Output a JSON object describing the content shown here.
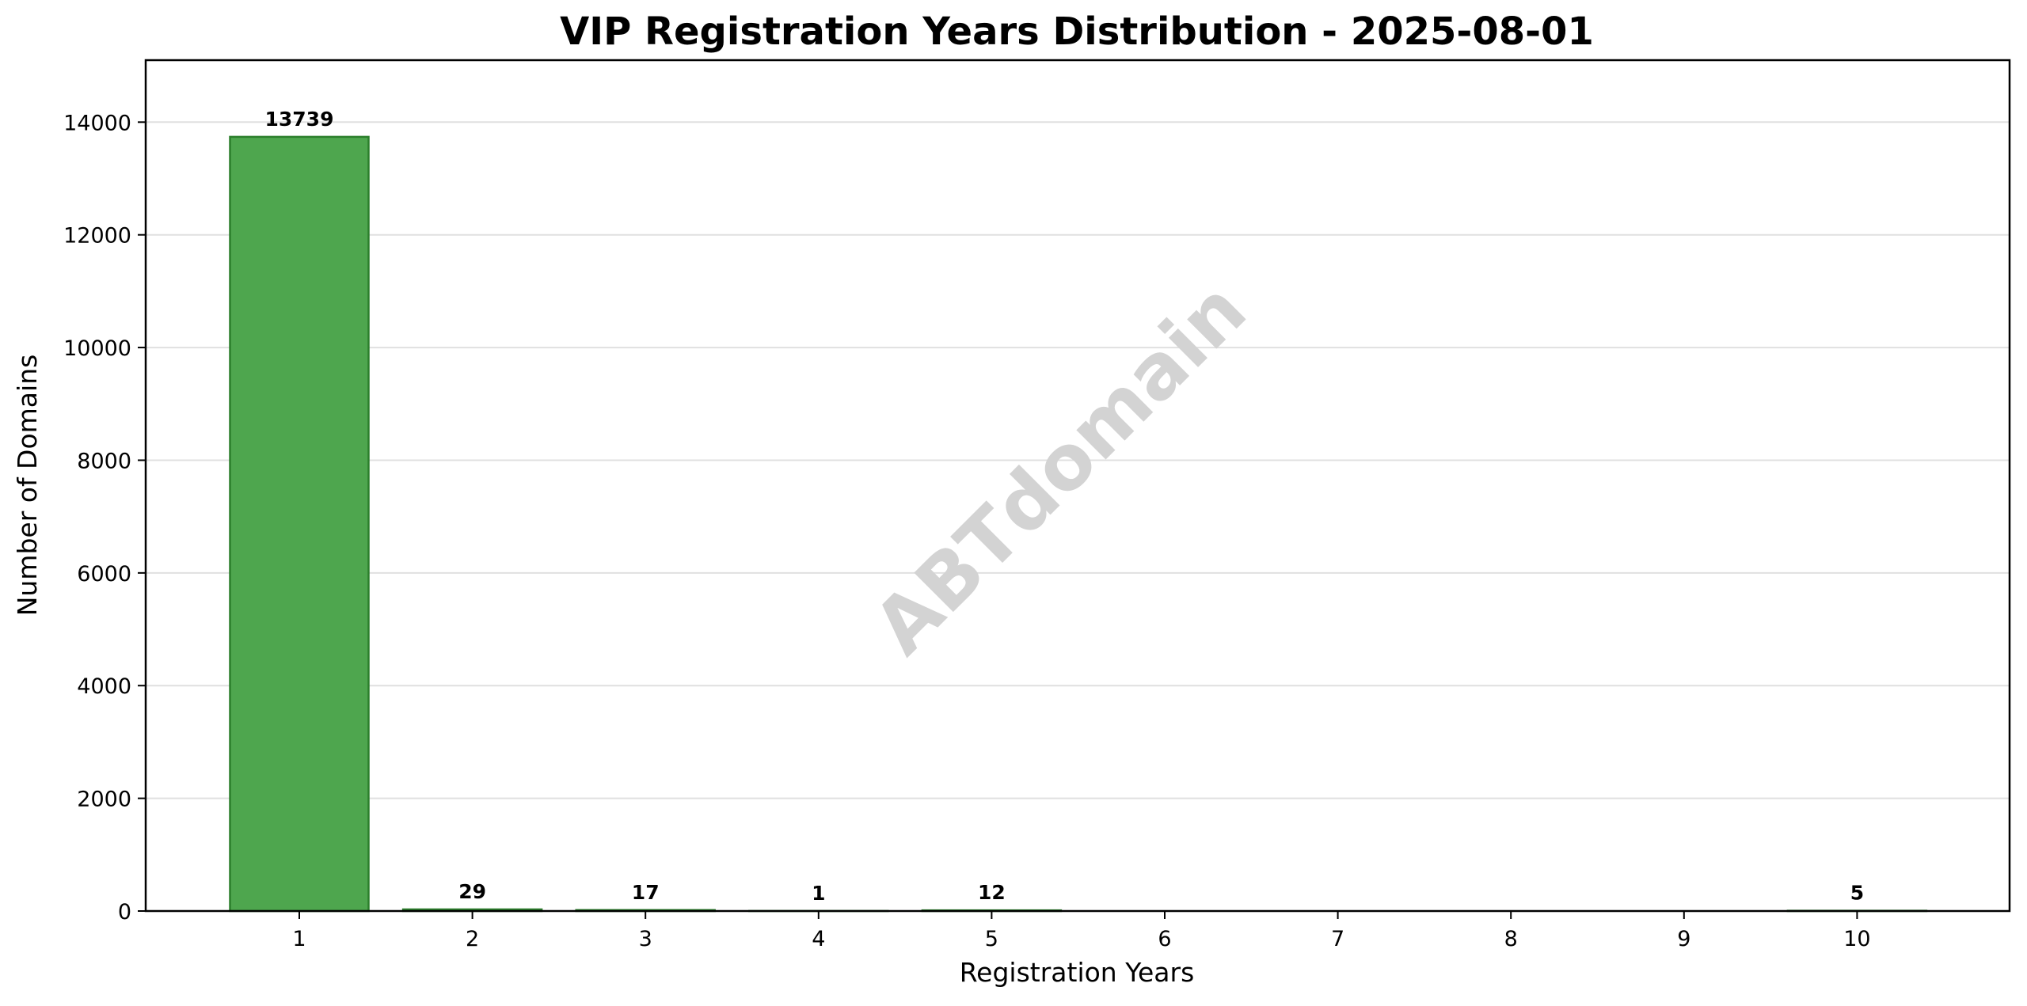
{
  "chart_data": {
    "type": "bar",
    "title": "VIP Registration Years Distribution - 2025-08-01",
    "xlabel": "Registration Years",
    "ylabel": "Number of Domains",
    "categories": [
      "1",
      "2",
      "3",
      "4",
      "5",
      "6",
      "7",
      "8",
      "9",
      "10"
    ],
    "values": [
      13739,
      29,
      17,
      1,
      12,
      0,
      0,
      0,
      0,
      5
    ],
    "data_labels": [
      "13739",
      "29",
      "17",
      "1",
      "12",
      "",
      "",
      "",
      "",
      "5"
    ],
    "ylim": [
      0,
      15100
    ],
    "yticks": [
      0,
      2000,
      4000,
      6000,
      8000,
      10000,
      12000,
      14000
    ],
    "ytick_labels": [
      "0",
      "2000",
      "4000",
      "6000",
      "8000",
      "10000",
      "12000",
      "14000"
    ],
    "grid": "y-axis",
    "bar_color": "#4ea64e",
    "bar_edge_color": "#2b7f2b",
    "watermark": "ABTdomain"
  }
}
